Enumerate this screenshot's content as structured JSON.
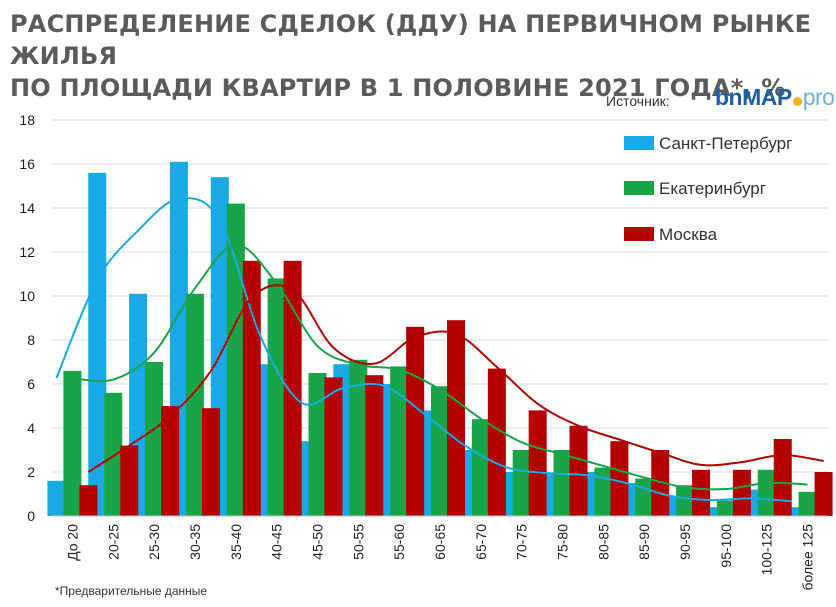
{
  "title_line1": "РАСПРЕДЕЛЕНИЕ СДЕЛОК (ДДУ) НА ПЕРВИЧНОМ РЫНКЕ ЖИЛЬЯ",
  "title_line2": "ПО ПЛОЩАДИ КВАРТИР В 1 ПОЛОВИНЕ 2021 ГОДА*, %",
  "source_label": "Источник:",
  "logo": {
    "part1": "bn",
    "part2": "MAP",
    "part3": "pro"
  },
  "footnote": "*Предварительные данные",
  "colors": {
    "spb": "#19a9e5",
    "ekb": "#18a549",
    "msk": "#b30000"
  },
  "chart_data": {
    "type": "bar",
    "title": "РАСПРЕДЕЛЕНИЕ СДЕЛОК (ДДУ) НА ПЕРВИЧНОМ РЫНКЕ ЖИЛЬЯ ПО ПЛОЩАДИ КВАРТИР В 1 ПОЛОВИНЕ 2021 ГОДА*, %",
    "xlabel": "",
    "ylabel": "",
    "ylim": [
      0,
      18
    ],
    "yticks": [
      0,
      2,
      4,
      6,
      8,
      10,
      12,
      14,
      16,
      18
    ],
    "grid": "horizontal",
    "legend_position": "top-right",
    "trendlines": true,
    "categories": [
      "До 20",
      "20-25",
      "25-30",
      "30-35",
      "35-40",
      "40-45",
      "45-50",
      "50-55",
      "55-60",
      "60-65",
      "65-70",
      "70-75",
      "75-80",
      "80-85",
      "85-90",
      "90-95",
      "95-100",
      "100-125",
      "более 125"
    ],
    "series": [
      {
        "name": "Санкт-Петербург",
        "values": [
          1.6,
          15.6,
          10.1,
          16.1,
          15.4,
          6.9,
          3.4,
          6.9,
          6.0,
          4.8,
          3.0,
          2.0,
          1.9,
          2.0,
          1.5,
          0.9,
          0.4,
          1.2,
          0.4
        ]
      },
      {
        "name": "Екатеринбург",
        "values": [
          6.6,
          5.6,
          7.0,
          10.1,
          14.2,
          10.8,
          6.5,
          7.1,
          6.8,
          5.9,
          4.4,
          3.0,
          3.0,
          2.2,
          1.7,
          1.4,
          0.7,
          2.1,
          1.1
        ]
      },
      {
        "name": "Москва",
        "values": [
          1.4,
          3.2,
          5.0,
          4.9,
          11.6,
          11.6,
          6.3,
          6.4,
          8.6,
          8.9,
          6.7,
          4.8,
          4.1,
          3.4,
          3.0,
          2.1,
          2.1,
          3.5,
          2.0
        ]
      }
    ]
  }
}
